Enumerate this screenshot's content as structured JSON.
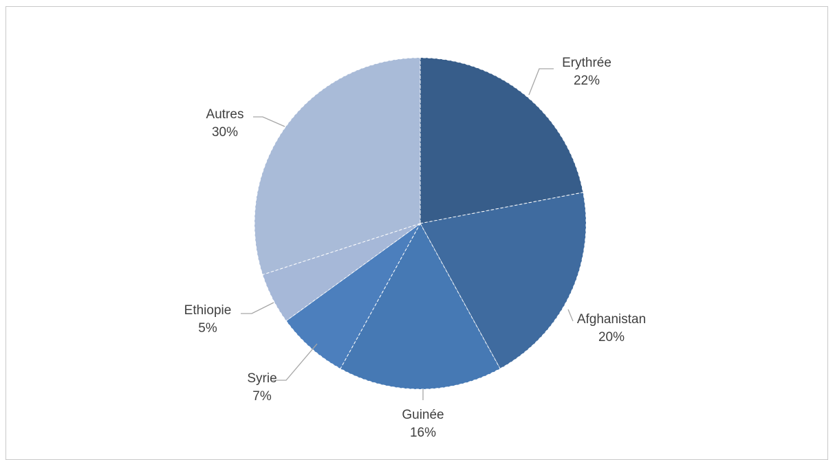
{
  "chart_data": {
    "type": "pie",
    "title": "",
    "slices": [
      {
        "label": "Erythrée",
        "value": 22,
        "value_label": "22%",
        "color": "#375d8a"
      },
      {
        "label": "Afghanistan",
        "value": 20,
        "value_label": "20%",
        "color": "#3f6b9f"
      },
      {
        "label": "Guinée",
        "value": 16,
        "value_label": "16%",
        "color": "#4679b4"
      },
      {
        "label": "Syrie",
        "value": 7,
        "value_label": "7%",
        "color": "#4c7fbd"
      },
      {
        "label": "Ethiopie",
        "value": 5,
        "value_label": "5%",
        "color": "#a6b8d8"
      },
      {
        "label": "Autres",
        "value": 30,
        "value_label": "30%",
        "color": "#a9bbd8"
      }
    ],
    "legend": "none",
    "labels": "outside with leader lines"
  }
}
